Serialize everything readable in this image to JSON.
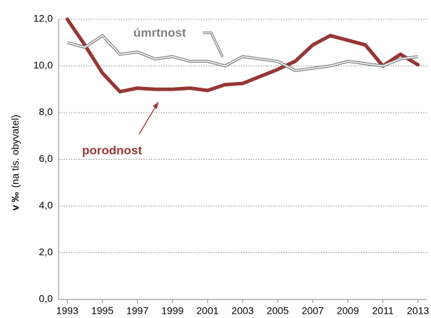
{
  "chart_data": {
    "type": "line",
    "y_label": [
      "v ‰",
      "(na tis. obyvatel)"
    ],
    "x": [
      1993,
      1994,
      1995,
      1996,
      1997,
      1998,
      1999,
      2000,
      2001,
      2002,
      2003,
      2004,
      2005,
      2006,
      2007,
      2008,
      2009,
      2010,
      2011,
      2012,
      2013
    ],
    "series": [
      {
        "name": "porodnost",
        "color": "#953735",
        "style": "thick",
        "values": [
          12.0,
          10.9,
          9.7,
          8.9,
          9.05,
          9.0,
          9.0,
          9.05,
          8.95,
          9.2,
          9.25,
          9.55,
          9.85,
          10.2,
          10.9,
          11.3,
          11.1,
          10.9,
          10.0,
          10.5,
          10.05
        ]
      },
      {
        "name": "úmrtnost",
        "color": "#7f7f7f",
        "style": "double",
        "values": [
          11.0,
          10.8,
          11.3,
          10.5,
          10.6,
          10.3,
          10.4,
          10.2,
          10.2,
          10.0,
          10.4,
          10.3,
          10.2,
          9.8,
          9.9,
          10.0,
          10.2,
          10.1,
          10.0,
          10.3,
          10.4
        ]
      }
    ],
    "xlim": [
      1992.5,
      2013.5
    ],
    "xticks": [
      1993,
      1995,
      1997,
      1999,
      2001,
      2003,
      2005,
      2007,
      2009,
      2011,
      2013
    ],
    "ylim": [
      0,
      12
    ],
    "yticks": [
      {
        "value": 0,
        "label": "0,0"
      },
      {
        "value": 2,
        "label": "2,0"
      },
      {
        "value": 4,
        "label": "4,0"
      },
      {
        "value": 6,
        "label": "6,0"
      },
      {
        "value": 8,
        "label": "8,0"
      },
      {
        "value": 10,
        "label": "10,0"
      },
      {
        "value": 12,
        "label": "12,0"
      }
    ],
    "grid": true
  }
}
